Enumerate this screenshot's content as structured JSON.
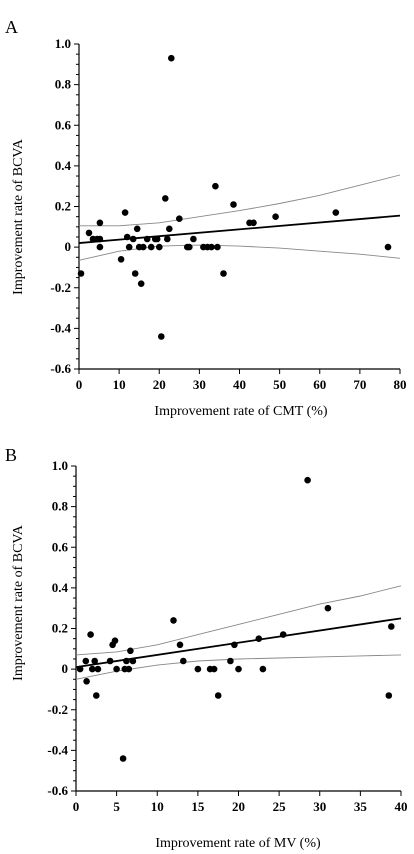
{
  "chart_data": [
    {
      "type": "scatter",
      "panel_label": "A",
      "title": "",
      "xlabel": "Improvement rate of CMT (%)",
      "ylabel": "Improvement rate of BCVA",
      "xlim": [
        0,
        80
      ],
      "ylim": [
        -0.6,
        1.0
      ],
      "xticks": [
        0,
        10,
        20,
        30,
        40,
        50,
        60,
        70,
        80
      ],
      "yticks": [
        -0.6,
        -0.4,
        -0.2,
        0,
        0.2,
        0.4,
        0.6,
        0.8,
        1.0
      ],
      "grid": false,
      "points": [
        [
          0.5,
          -0.13
        ],
        [
          2.5,
          0.07
        ],
        [
          3.5,
          0.04
        ],
        [
          4.5,
          0.04
        ],
        [
          5.2,
          0.0
        ],
        [
          5.2,
          0.04
        ],
        [
          5.2,
          0.12
        ],
        [
          10.5,
          -0.06
        ],
        [
          11.5,
          0.17
        ],
        [
          12.0,
          0.05
        ],
        [
          12.5,
          0.0
        ],
        [
          13.5,
          0.04
        ],
        [
          14.0,
          -0.13
        ],
        [
          14.5,
          0.09
        ],
        [
          15.0,
          0.0
        ],
        [
          15.5,
          -0.18
        ],
        [
          16.0,
          0.0
        ],
        [
          17.0,
          0.04
        ],
        [
          18.0,
          0.0
        ],
        [
          19.0,
          0.04
        ],
        [
          19.5,
          0.04
        ],
        [
          20.0,
          0.0
        ],
        [
          20.5,
          -0.44
        ],
        [
          21.5,
          0.24
        ],
        [
          22.0,
          0.04
        ],
        [
          22.5,
          0.09
        ],
        [
          23.0,
          0.93
        ],
        [
          25.0,
          0.14
        ],
        [
          27.0,
          0.0
        ],
        [
          27.5,
          0.0
        ],
        [
          28.5,
          0.04
        ],
        [
          31.0,
          0.0
        ],
        [
          32.0,
          0.0
        ],
        [
          33.0,
          0.0
        ],
        [
          34.0,
          0.3
        ],
        [
          34.5,
          0.0
        ],
        [
          36.0,
          -0.13
        ],
        [
          38.5,
          0.21
        ],
        [
          42.5,
          0.12
        ],
        [
          43.5,
          0.12
        ],
        [
          49.0,
          0.15
        ],
        [
          64.0,
          0.17
        ],
        [
          77.0,
          0.0
        ]
      ],
      "fit_line": {
        "x": [
          0,
          80
        ],
        "y": [
          0.02,
          0.155
        ]
      },
      "ci_upper": {
        "x": [
          0,
          10,
          20,
          30,
          40,
          50,
          60,
          70,
          80
        ],
        "y": [
          0.105,
          0.105,
          0.12,
          0.15,
          0.18,
          0.215,
          0.255,
          0.305,
          0.355
        ]
      },
      "ci_lower": {
        "x": [
          0,
          10,
          20,
          30,
          40,
          50,
          60,
          70,
          80
        ],
        "y": [
          -0.065,
          -0.02,
          0.005,
          0.01,
          0.005,
          -0.005,
          -0.02,
          -0.035,
          -0.055
        ]
      }
    },
    {
      "type": "scatter",
      "panel_label": "B",
      "title": "",
      "xlabel": "Improvement rate of MV (%)",
      "ylabel": "Improvement rate of BCVA",
      "xlim": [
        0,
        40
      ],
      "ylim": [
        -0.6,
        1.0
      ],
      "xticks": [
        0,
        5,
        10,
        15,
        20,
        25,
        30,
        35,
        40
      ],
      "yticks": [
        -0.6,
        -0.4,
        -0.2,
        0,
        0.2,
        0.4,
        0.6,
        0.8,
        1.0
      ],
      "grid": false,
      "points": [
        [
          0.5,
          0.0
        ],
        [
          1.2,
          0.04
        ],
        [
          1.3,
          -0.06
        ],
        [
          1.8,
          0.17
        ],
        [
          2.0,
          0.0
        ],
        [
          2.3,
          0.04
        ],
        [
          2.5,
          -0.13
        ],
        [
          2.7,
          0.0
        ],
        [
          4.2,
          0.04
        ],
        [
          4.5,
          0.12
        ],
        [
          4.8,
          0.14
        ],
        [
          5.0,
          0.0
        ],
        [
          5.8,
          -0.44
        ],
        [
          6.0,
          0.0
        ],
        [
          6.2,
          0.04
        ],
        [
          6.5,
          0.0
        ],
        [
          6.7,
          0.09
        ],
        [
          7.0,
          0.04
        ],
        [
          12.0,
          0.24
        ],
        [
          12.8,
          0.12
        ],
        [
          13.2,
          0.04
        ],
        [
          15.0,
          0.0
        ],
        [
          16.5,
          0.0
        ],
        [
          17.0,
          0.0
        ],
        [
          17.5,
          -0.13
        ],
        [
          19.0,
          0.04
        ],
        [
          19.5,
          0.12
        ],
        [
          20.0,
          0.0
        ],
        [
          22.5,
          0.15
        ],
        [
          23.0,
          0.0
        ],
        [
          25.5,
          0.17
        ],
        [
          28.5,
          0.93
        ],
        [
          31.0,
          0.3
        ],
        [
          38.5,
          -0.13
        ],
        [
          38.8,
          0.21
        ]
      ],
      "fit_line": {
        "x": [
          0,
          40
        ],
        "y": [
          0.01,
          0.25
        ]
      },
      "ci_upper": {
        "x": [
          0,
          5,
          10,
          15,
          20,
          25,
          30,
          35,
          40
        ],
        "y": [
          0.07,
          0.085,
          0.12,
          0.17,
          0.22,
          0.27,
          0.32,
          0.36,
          0.41
        ]
      },
      "ci_lower": {
        "x": [
          0,
          5,
          10,
          15,
          20,
          25,
          30,
          35,
          40
        ],
        "y": [
          -0.05,
          -0.01,
          0.02,
          0.04,
          0.05,
          0.055,
          0.06,
          0.065,
          0.07
        ]
      }
    }
  ]
}
